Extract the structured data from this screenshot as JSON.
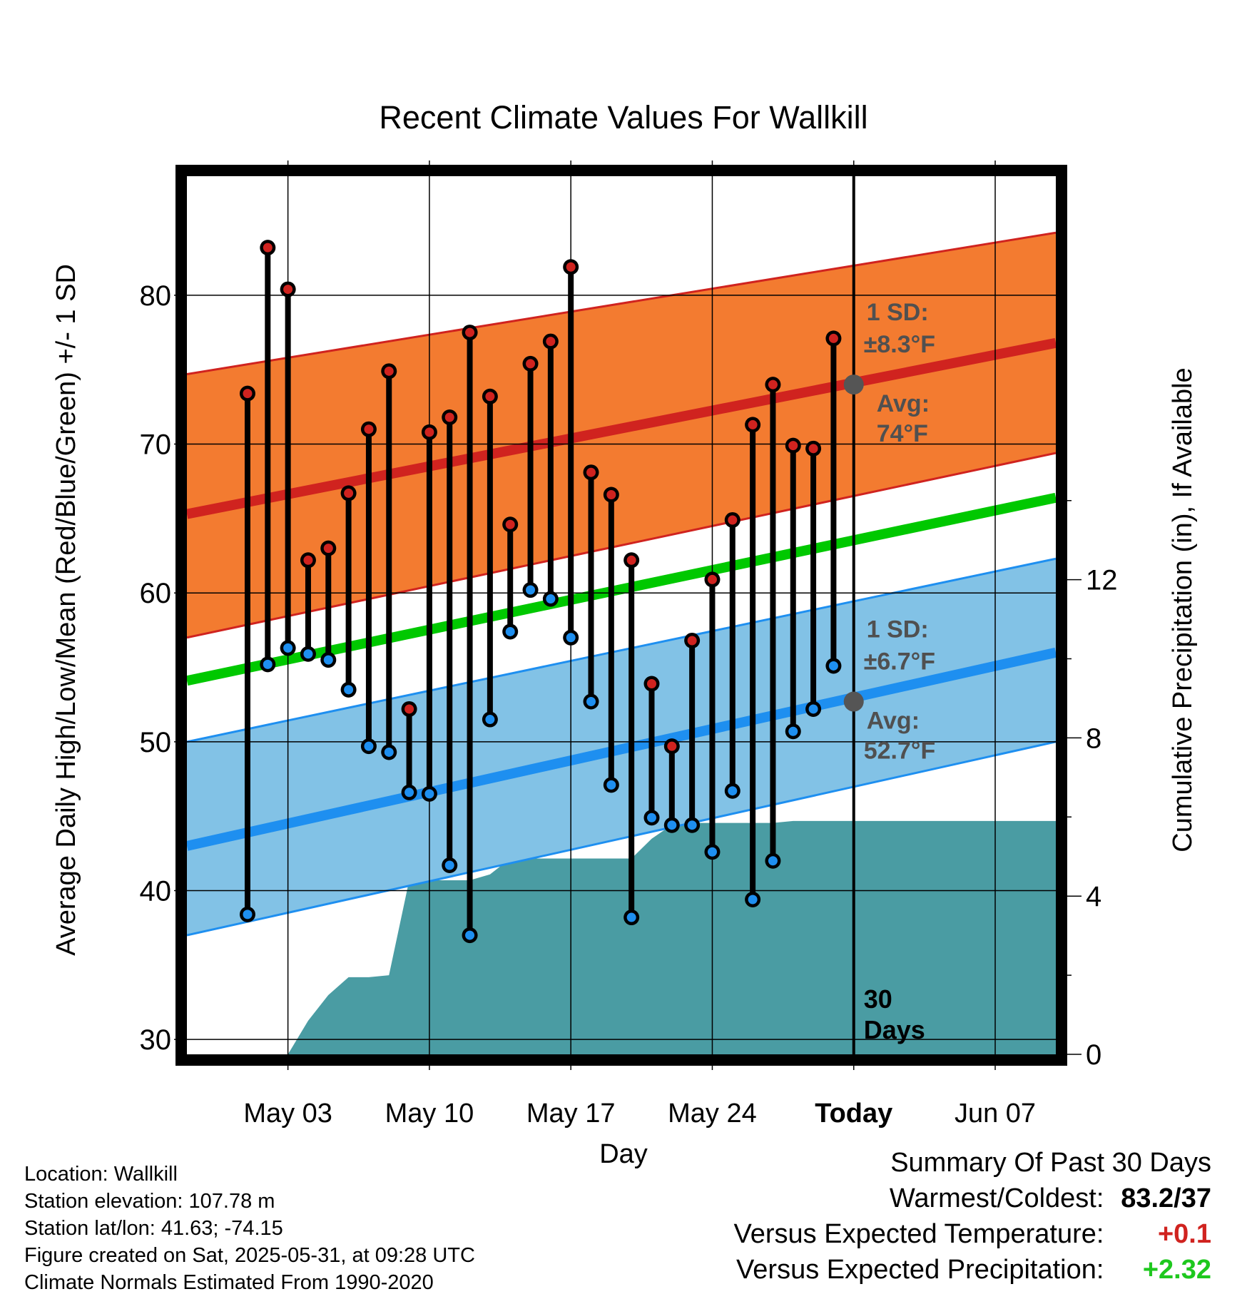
{
  "chart_data": {
    "type": "line",
    "title": "Recent Climate Values For Wallkill",
    "xlabel": "Day",
    "ylabel": "Average Daily High/Low/Mean (Red/Blue/Green) +/- 1 SD",
    "y2label": "Cumulative Precipitation (in), If Available",
    "ylim": [
      29,
      88
    ],
    "y2lim": [
      0,
      22.2
    ],
    "yticks": [
      30,
      40,
      50,
      60,
      70,
      80
    ],
    "y2ticks": [
      0,
      4,
      8,
      12
    ],
    "xlim": [
      "2025-04-28",
      "2025-06-10"
    ],
    "xticks": [
      {
        "date": "2025-05-03",
        "label": "May 03"
      },
      {
        "date": "2025-05-10",
        "label": "May 10"
      },
      {
        "date": "2025-05-17",
        "label": "May 17"
      },
      {
        "date": "2025-05-24",
        "label": "May 24"
      },
      {
        "date": "2025-05-31",
        "label": "Today"
      },
      {
        "date": "2025-06-07",
        "label": "Jun 07"
      }
    ],
    "today": "2025-05-31",
    "today_label": "30\nDays",
    "normals": {
      "high_avg": {
        "dates": [
          "2025-04-28",
          "2025-06-10"
        ],
        "values": [
          65.3,
          76.8
        ]
      },
      "high_band": {
        "dates": [
          "2025-04-28",
          "2025-06-10"
        ],
        "lower": [
          57.0,
          69.4
        ],
        "upper": [
          74.7,
          84.2
        ]
      },
      "low_avg": {
        "dates": [
          "2025-04-28",
          "2025-06-10"
        ],
        "values": [
          43.0,
          56.0
        ]
      },
      "low_band": {
        "dates": [
          "2025-04-28",
          "2025-06-10"
        ],
        "lower": [
          37.0,
          50.0
        ],
        "upper": [
          50.0,
          62.3
        ]
      },
      "mean_avg": {
        "dates": [
          "2025-04-28",
          "2025-06-10"
        ],
        "values": [
          54.1,
          66.4
        ]
      }
    },
    "series": [
      {
        "name": "High",
        "dates": [
          "2025-05-01",
          "2025-05-02",
          "2025-05-03",
          "2025-05-04",
          "2025-05-05",
          "2025-05-06",
          "2025-05-07",
          "2025-05-08",
          "2025-05-09",
          "2025-05-10",
          "2025-05-11",
          "2025-05-12",
          "2025-05-13",
          "2025-05-14",
          "2025-05-15",
          "2025-05-16",
          "2025-05-17",
          "2025-05-18",
          "2025-05-19",
          "2025-05-20",
          "2025-05-21",
          "2025-05-22",
          "2025-05-23",
          "2025-05-24",
          "2025-05-25",
          "2025-05-26",
          "2025-05-27",
          "2025-05-28",
          "2025-05-29",
          "2025-05-30"
        ],
        "values": [
          73.4,
          83.2,
          80.4,
          62.2,
          63.0,
          66.7,
          71.0,
          74.9,
          52.2,
          70.8,
          71.8,
          77.5,
          73.2,
          64.6,
          75.4,
          76.9,
          81.9,
          68.1,
          66.6,
          62.2,
          53.9,
          49.7,
          56.8,
          60.9,
          64.9,
          71.3,
          74.0,
          69.9,
          69.7,
          77.1
        ]
      },
      {
        "name": "Low",
        "dates": [
          "2025-05-01",
          "2025-05-02",
          "2025-05-03",
          "2025-05-04",
          "2025-05-05",
          "2025-05-06",
          "2025-05-07",
          "2025-05-08",
          "2025-05-09",
          "2025-05-10",
          "2025-05-11",
          "2025-05-12",
          "2025-05-13",
          "2025-05-14",
          "2025-05-15",
          "2025-05-16",
          "2025-05-17",
          "2025-05-18",
          "2025-05-19",
          "2025-05-20",
          "2025-05-21",
          "2025-05-22",
          "2025-05-23",
          "2025-05-24",
          "2025-05-25",
          "2025-05-26",
          "2025-05-27",
          "2025-05-28",
          "2025-05-29",
          "2025-05-30"
        ],
        "values": [
          38.4,
          55.2,
          56.3,
          55.9,
          55.5,
          53.5,
          49.7,
          49.3,
          46.6,
          46.5,
          41.7,
          37.0,
          51.5,
          57.4,
          60.2,
          59.6,
          57.0,
          52.7,
          47.1,
          38.2,
          44.9,
          44.4,
          44.4,
          42.6,
          46.7,
          39.4,
          42.0,
          50.7,
          52.2,
          55.1
        ]
      },
      {
        "name": "Cumulative Precipitation",
        "dates": [
          "2025-05-02",
          "2025-05-03",
          "2025-05-04",
          "2025-05-05",
          "2025-05-06",
          "2025-05-07",
          "2025-05-08",
          "2025-05-09",
          "2025-05-10",
          "2025-05-11",
          "2025-05-12",
          "2025-05-13",
          "2025-05-14",
          "2025-05-15",
          "2025-05-16",
          "2025-05-17",
          "2025-05-18",
          "2025-05-19",
          "2025-05-20",
          "2025-05-21",
          "2025-05-22",
          "2025-05-23",
          "2025-05-24",
          "2025-05-25",
          "2025-05-26",
          "2025-05-27",
          "2025-05-28",
          "2025-05-29",
          "2025-05-30",
          "2025-05-31",
          "2025-06-10"
        ],
        "values": [
          0.0,
          0.0,
          0.85,
          1.5,
          1.95,
          1.95,
          2.0,
          4.4,
          4.4,
          4.4,
          4.4,
          4.55,
          4.95,
          4.95,
          4.95,
          4.95,
          4.95,
          4.95,
          4.95,
          5.45,
          5.8,
          5.85,
          5.85,
          5.85,
          5.85,
          5.85,
          5.9,
          5.9,
          5.9,
          5.9,
          5.9
        ]
      }
    ],
    "annotations": {
      "high_sd_label": "1 SD:",
      "high_sd_value": "±8.3°F",
      "high_avg_label": "Avg:",
      "high_avg_value": "74°F",
      "high_avg_point": 74.0,
      "low_sd_label": "1 SD:",
      "low_sd_value": "±6.7°F",
      "low_avg_label": "Avg:",
      "low_avg_value": "52.7°F",
      "low_avg_point": 52.7
    },
    "colors": {
      "high_band": "#f37b30",
      "high_line": "#d0231f",
      "low_band": "#82c2e6",
      "low_line": "#1e8ff0",
      "mean_line": "#00c800",
      "precip": "#4a9ca3",
      "high_marker": "#d0231f",
      "low_marker": "#1e8ff0",
      "annotation_text": "#505050"
    }
  },
  "meta": {
    "location": "Location: Wallkill",
    "elevation": "Station elevation: 107.78 m",
    "latlon": "Station lat/lon: 41.63; -74.15",
    "created": "Figure created on Sat, 2025-05-31, at 09:28 UTC",
    "normals": "Climate Normals Estimated From 1990-2020"
  },
  "summary": {
    "title": "Summary Of Past 30 Days",
    "warmest_label": "Warmest/Coldest:",
    "warmest_value": "83.2/37",
    "temp_label": "Versus Expected Temperature:",
    "temp_value": "+0.1",
    "temp_color": "#d0231f",
    "precip_label": "Versus Expected Precipitation:",
    "precip_value": "+2.32",
    "precip_color": "#1ec81e"
  }
}
